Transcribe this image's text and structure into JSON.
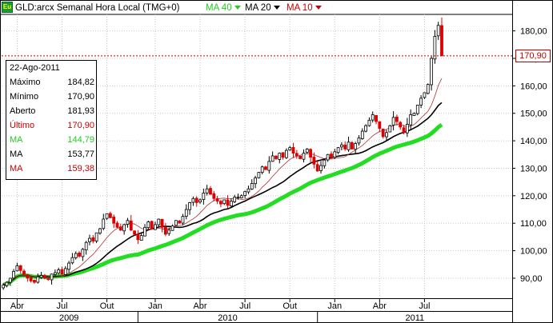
{
  "header": {
    "logo_text": "Eu",
    "title": "GLD:arcx Semanal Hora Local (TMG+0)",
    "indicators": [
      {
        "label": "MA 40",
        "color": "#22cc22"
      },
      {
        "label": "MA 20",
        "color": "#000000"
      },
      {
        "label": "MA 10",
        "color": "#cc0000"
      }
    ]
  },
  "ohlc_panel": {
    "date": "22-Ago-2011",
    "rows": [
      {
        "label": "Máximo",
        "value": "184,82",
        "color": "#000000"
      },
      {
        "label": "Mínimo",
        "value": "170,90",
        "color": "#000000"
      },
      {
        "label": "Aberto",
        "value": "181,93",
        "color": "#000000"
      },
      {
        "label": "Último",
        "value": "170,90",
        "color": "#cc0000"
      },
      {
        "label": "MA",
        "value": "144,79",
        "color": "#22cc22"
      },
      {
        "label": "MA",
        "value": "153,77",
        "color": "#000000"
      },
      {
        "label": "MA",
        "value": "159,38",
        "color": "#cc0000"
      }
    ]
  },
  "last_price_label": "170,90",
  "chart_data": {
    "type": "candlestick",
    "title": "GLD:arcx Semanal Hora Local (TMG+0)",
    "y_range": [
      83,
      186
    ],
    "y_ticks": [
      {
        "value": 90,
        "label": "90,00"
      },
      {
        "value": 100,
        "label": "100,00"
      },
      {
        "value": 110,
        "label": "110,00"
      },
      {
        "value": 120,
        "label": "120,00"
      },
      {
        "value": 130,
        "label": "130,00"
      },
      {
        "value": 140,
        "label": "140,00"
      },
      {
        "value": 150,
        "label": "150,00"
      },
      {
        "value": 160,
        "label": "160,00"
      },
      {
        "value": 170,
        "label": "170,00"
      },
      {
        "value": 180,
        "label": "180,00"
      }
    ],
    "month_ticks": [
      {
        "label": "Abr",
        "week": 4
      },
      {
        "label": "Jul",
        "week": 17
      },
      {
        "label": "Out",
        "week": 30
      },
      {
        "label": "Jan",
        "week": 44
      },
      {
        "label": "Abr",
        "week": 57
      },
      {
        "label": "Jul",
        "week": 70
      },
      {
        "label": "Out",
        "week": 83
      },
      {
        "label": "Jan",
        "week": 96
      },
      {
        "label": "Abr",
        "week": 109
      },
      {
        "label": "Jul",
        "week": 122
      }
    ],
    "year_ticks": [
      {
        "label": "2009",
        "from_week": 0,
        "to_week": 39
      },
      {
        "label": "2010",
        "from_week": 39,
        "to_week": 91
      },
      {
        "label": "2011",
        "from_week": 91,
        "to_week": 130
      }
    ],
    "last_price": 170.9,
    "closes": [
      87.5,
      88.5,
      90.0,
      92.5,
      94.5,
      92.8,
      91.5,
      90.0,
      89.0,
      88.5,
      90.5,
      91.0,
      90.0,
      89.5,
      91.5,
      92.0,
      93.0,
      91.5,
      93.5,
      95.5,
      97.5,
      99.0,
      98.0,
      100.5,
      103.0,
      104.5,
      103.5,
      106.5,
      108.0,
      111.5,
      113.5,
      112.0,
      110.0,
      108.5,
      107.5,
      109.5,
      111.0,
      107.5,
      106.0,
      104.0,
      105.5,
      108.5,
      110.5,
      108.0,
      109.5,
      111.5,
      108.5,
      106.0,
      107.5,
      109.0,
      111.0,
      110.0,
      112.5,
      115.0,
      117.5,
      119.0,
      117.5,
      118.5,
      121.0,
      122.5,
      120.5,
      119.0,
      118.0,
      117.0,
      118.5,
      116.5,
      118.0,
      119.5,
      119.5,
      120.0,
      121.5,
      122.5,
      124.5,
      126.5,
      128.5,
      130.5,
      129.5,
      132.5,
      134.5,
      133.5,
      135.5,
      134.0,
      136.5,
      137.5,
      135.5,
      134.5,
      133.5,
      135.5,
      137.0,
      134.0,
      131.5,
      129.0,
      131.0,
      133.0,
      135.0,
      134.0,
      136.0,
      137.5,
      138.5,
      137.0,
      139.5,
      137.0,
      139.0,
      141.0,
      143.5,
      145.5,
      147.5,
      149.5,
      147.0,
      144.5,
      141.5,
      143.0,
      145.5,
      148.5,
      147.0,
      145.0,
      143.0,
      146.0,
      149.5,
      150.0,
      153.0,
      155.5,
      157.5,
      160.5,
      170.0,
      178.0,
      182.0,
      170.9
    ]
  }
}
